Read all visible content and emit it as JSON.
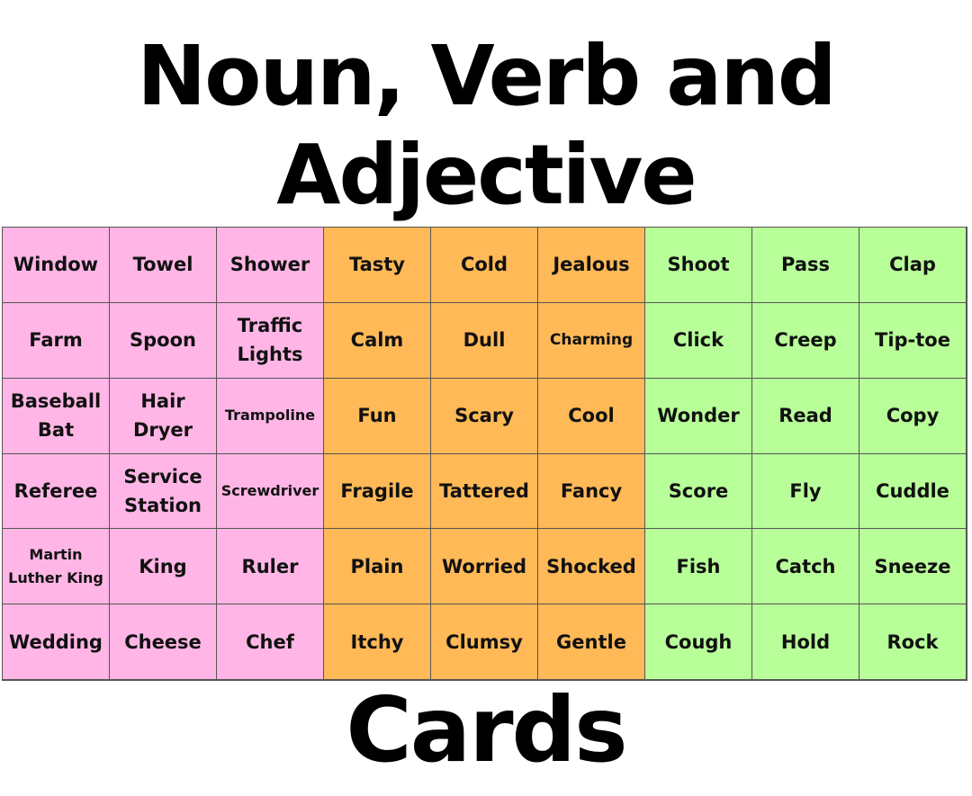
{
  "title": {
    "line1": "Noun, Verb and",
    "line2": "Adjective",
    "line3": "Cards"
  },
  "colors": {
    "noun": "#ffb6e6",
    "adjective": "#ffb957",
    "verb": "#b8ff99"
  },
  "rows": [
    [
      "Window",
      "Towel",
      "Shower",
      "Tasty",
      "Cold",
      "Jealous",
      "Shoot",
      "Pass",
      "Clap"
    ],
    [
      "Farm",
      "Spoon",
      "Traffic Lights",
      "Calm",
      "Dull",
      "Charming",
      "Click",
      "Creep",
      "Tip-toe"
    ],
    [
      "Baseball Bat",
      "Hair Dryer",
      "Trampoline",
      "Fun",
      "Scary",
      "Cool",
      "Wonder",
      "Read",
      "Copy"
    ],
    [
      "Referee",
      "Service Station",
      "Screwdriver",
      "Fragile",
      "Tattered",
      "Fancy",
      "Score",
      "Fly",
      "Cuddle"
    ],
    [
      "Martin Luther King",
      "King",
      "Ruler",
      "Plain",
      "Worried",
      "Shocked",
      "Fish",
      "Catch",
      "Sneeze"
    ],
    [
      "Wedding",
      "Cheese",
      "Chef",
      "Itchy",
      "Clumsy",
      "Gentle",
      "Cough",
      "Hold",
      "Rock"
    ]
  ]
}
